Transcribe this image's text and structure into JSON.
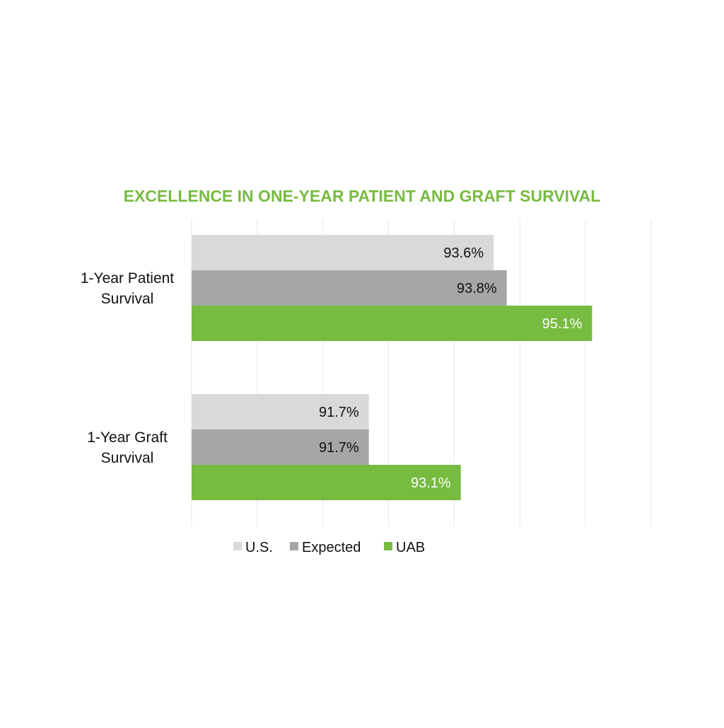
{
  "chart_data": {
    "type": "bar",
    "orientation": "horizontal",
    "title": "EXCELLENCE IN ONE-YEAR PATIENT AND GRAFT SURVIVAL",
    "categories": [
      [
        "1-Year Patient",
        "Survival"
      ],
      [
        "1-Year Graft",
        "Survival"
      ]
    ],
    "series": [
      {
        "name": "U.S.",
        "values": [
          93.6,
          91.7
        ],
        "labels": [
          "93.6%",
          "91.7%"
        ],
        "color": "#d9d9d9",
        "label_color": "#111111"
      },
      {
        "name": "Expected",
        "values": [
          93.8,
          91.7
        ],
        "labels": [
          "93.8%",
          "91.7%"
        ],
        "color": "#a6a6a6",
        "label_color": "#111111"
      },
      {
        "name": "UAB",
        "values": [
          95.1,
          93.1
        ],
        "labels": [
          "95.1%",
          "93.1%"
        ],
        "color": "#77bb41",
        "label_color": "#ffffff"
      }
    ],
    "xlim": [
      89,
      96
    ],
    "grid": true,
    "legend": "bottom",
    "title_color": "#77bb41"
  }
}
